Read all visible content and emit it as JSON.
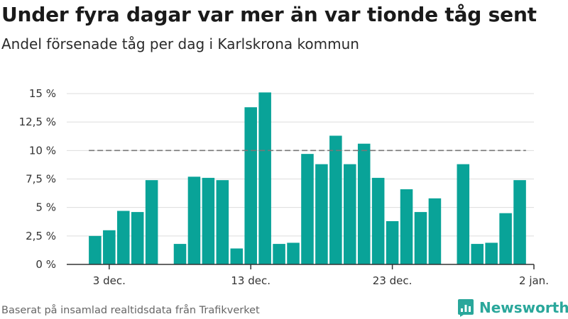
{
  "header": {
    "title": "Under fyra dagar var mer än var tionde tåg sent",
    "subtitle": "Andel försenade tåg per dag i Karlskrona kommun"
  },
  "footer": {
    "source": "Baserat på insamlad realtidsdata från Trafikverket",
    "brand": "Newsworthy",
    "brand_logo_icon": "newsworthy-logo-icon"
  },
  "colors": {
    "bar": "#09a398",
    "reference_line": "#777777",
    "grid": "#dddddd",
    "axis": "#333333",
    "brand": "#2aa79b"
  },
  "chart_data": {
    "type": "bar",
    "title": "Under fyra dagar var mer än var tionde tåg sent",
    "subtitle": "Andel försenade tåg per dag i Karlskrona kommun",
    "xlabel": "",
    "ylabel": "",
    "x_unit": "day",
    "x_range": [
      "2020-11-30",
      "2021-01-02"
    ],
    "ylim": [
      0,
      15
    ],
    "y_ticks": [
      {
        "value": 0,
        "label": "0 %"
      },
      {
        "value": 2.5,
        "label": "2,5 %"
      },
      {
        "value": 5,
        "label": "5 %"
      },
      {
        "value": 7.5,
        "label": "7,5 %"
      },
      {
        "value": 10,
        "label": "10 %"
      },
      {
        "value": 12.5,
        "label": "12,5 %"
      },
      {
        "value": 15,
        "label": "15 %"
      }
    ],
    "x_ticks": [
      {
        "date": "2020-12-03",
        "label": "3 dec."
      },
      {
        "date": "2020-12-13",
        "label": "13 dec."
      },
      {
        "date": "2020-12-23",
        "label": "23 dec."
      },
      {
        "date": "2021-01-02",
        "label": "2 jan."
      }
    ],
    "grid": true,
    "legend": "none",
    "reference_line": {
      "value": 10,
      "style": "dashed"
    },
    "x": [
      "2020-12-02",
      "2020-12-03",
      "2020-12-04",
      "2020-12-05",
      "2020-12-06",
      "2020-12-07",
      "2020-12-08",
      "2020-12-09",
      "2020-12-10",
      "2020-12-11",
      "2020-12-12",
      "2020-12-13",
      "2020-12-14",
      "2020-12-15",
      "2020-12-16",
      "2020-12-17",
      "2020-12-18",
      "2020-12-19",
      "2020-12-20",
      "2020-12-21",
      "2020-12-22",
      "2020-12-23",
      "2020-12-24",
      "2020-12-25",
      "2020-12-26",
      "2020-12-27",
      "2020-12-28",
      "2020-12-29",
      "2020-12-30",
      "2020-12-31",
      "2021-01-01"
    ],
    "values": [
      2.5,
      3.0,
      4.7,
      4.6,
      7.4,
      null,
      1.8,
      7.7,
      7.6,
      7.4,
      1.4,
      13.8,
      15.1,
      1.8,
      1.9,
      9.7,
      8.8,
      11.3,
      8.8,
      10.6,
      7.6,
      3.8,
      6.6,
      4.6,
      5.8,
      null,
      8.8,
      1.8,
      1.9,
      4.5,
      7.4
    ]
  }
}
